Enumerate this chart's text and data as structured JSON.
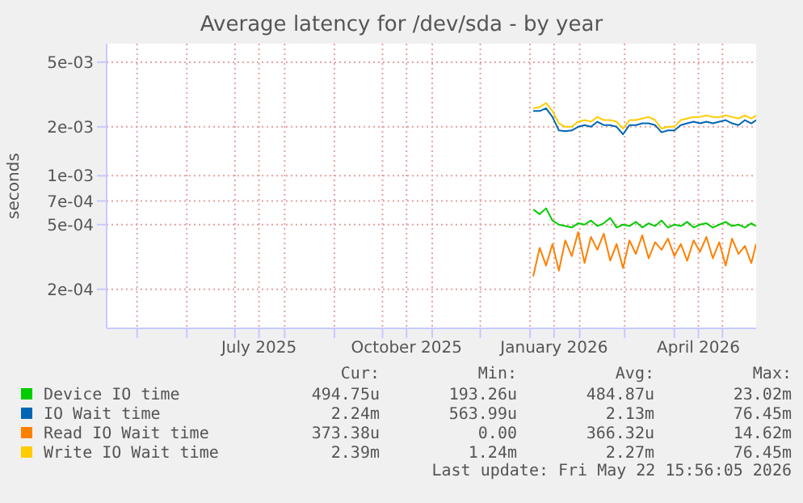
{
  "chart_data": {
    "type": "line",
    "title": "Average latency for /dev/sda - by year",
    "ylabel": "seconds",
    "log": "y",
    "grid": true,
    "legend": "bottom",
    "xlim": [
      "2025-04-12",
      "2026-05-22"
    ],
    "xticks": [
      {
        "value": "2025-05-01",
        "label": null
      },
      {
        "value": "2025-06-01",
        "label": null
      },
      {
        "value": "2025-07-01",
        "label": null
      },
      {
        "value": "2025-07-16",
        "label": "July 2025"
      },
      {
        "value": "2025-08-01",
        "label": null
      },
      {
        "value": "2025-09-01",
        "label": null
      },
      {
        "value": "2025-10-01",
        "label": null
      },
      {
        "value": "2025-10-16",
        "label": "October 2025"
      },
      {
        "value": "2025-11-01",
        "label": null
      },
      {
        "value": "2025-12-01",
        "label": null
      },
      {
        "value": "2026-01-01",
        "label": null
      },
      {
        "value": "2026-01-16",
        "label": "January 2026"
      },
      {
        "value": "2026-02-01",
        "label": null
      },
      {
        "value": "2026-03-01",
        "label": null
      },
      {
        "value": "2026-04-01",
        "label": null
      },
      {
        "value": "2026-04-16",
        "label": "April 2026"
      },
      {
        "value": "2026-05-01",
        "label": null
      }
    ],
    "ylim": [
      0.000115,
      0.0065
    ],
    "yticks": [
      {
        "value": 0.0002,
        "label": "2e-04"
      },
      {
        "value": 0.0005,
        "label": "5e-04"
      },
      {
        "value": 0.0007,
        "label": "7e-04"
      },
      {
        "value": 0.001,
        "label": "1e-03"
      },
      {
        "value": 0.002,
        "label": "2e-03"
      },
      {
        "value": 0.005,
        "label": "5e-03"
      }
    ],
    "x": [
      "2026-01-03",
      "2026-01-07",
      "2026-01-11",
      "2026-01-15",
      "2026-01-19",
      "2026-01-23",
      "2026-01-27",
      "2026-01-31",
      "2026-02-04",
      "2026-02-08",
      "2026-02-12",
      "2026-02-16",
      "2026-02-20",
      "2026-02-24",
      "2026-02-28",
      "2026-03-04",
      "2026-03-08",
      "2026-03-12",
      "2026-03-16",
      "2026-03-20",
      "2026-03-24",
      "2026-03-28",
      "2026-04-01",
      "2026-04-05",
      "2026-04-09",
      "2026-04-13",
      "2026-04-17",
      "2026-04-21",
      "2026-04-25",
      "2026-04-29",
      "2026-05-03",
      "2026-05-07",
      "2026-05-11",
      "2026-05-15",
      "2026-05-19",
      "2026-05-22"
    ],
    "series": [
      {
        "name": "Device IO time",
        "color": "#00cc00",
        "values": [
          0.00062,
          0.00058,
          0.00063,
          0.00053,
          0.0005,
          0.00049,
          0.00048,
          0.00051,
          0.0005,
          0.00053,
          0.00049,
          0.00051,
          0.00055,
          0.00048,
          0.0005,
          0.00049,
          0.00052,
          0.00048,
          0.00051,
          0.00049,
          0.00053,
          0.00048,
          0.0005,
          0.00049,
          0.00052,
          0.00048,
          0.0005,
          0.00051,
          0.00048,
          0.0005,
          0.00052,
          0.00049,
          0.0005,
          0.00048,
          0.00051,
          0.00049
        ]
      },
      {
        "name": "IO Wait time",
        "color": "#0066b3",
        "values": [
          0.0025,
          0.0025,
          0.0026,
          0.0023,
          0.0019,
          0.00188,
          0.0019,
          0.002,
          0.00205,
          0.002,
          0.00215,
          0.00205,
          0.00205,
          0.002,
          0.0018,
          0.00205,
          0.00205,
          0.0021,
          0.0021,
          0.00205,
          0.00185,
          0.0019,
          0.0019,
          0.00205,
          0.0021,
          0.00215,
          0.0021,
          0.00215,
          0.0021,
          0.00215,
          0.0022,
          0.0021,
          0.00205,
          0.0022,
          0.0021,
          0.0022
        ]
      },
      {
        "name": "Read IO Wait time",
        "color": "#ff8000",
        "values": [
          0.00024,
          0.00036,
          0.00028,
          0.00038,
          0.00026,
          0.0004,
          0.00032,
          0.00045,
          0.00029,
          0.00042,
          0.00035,
          0.00044,
          0.0003,
          0.00038,
          0.00027,
          0.0004,
          0.00033,
          0.00043,
          0.00031,
          0.00039,
          0.00035,
          0.00041,
          0.00032,
          0.00038,
          0.0003,
          0.0004,
          0.00034,
          0.00042,
          0.00031,
          0.00039,
          0.00028,
          0.00041,
          0.00033,
          0.00037,
          0.00029,
          0.00038
        ]
      },
      {
        "name": "Write IO Wait time",
        "color": "#ffcc00",
        "values": [
          0.0026,
          0.00265,
          0.0028,
          0.0025,
          0.0021,
          0.002,
          0.002,
          0.00215,
          0.0022,
          0.00215,
          0.0023,
          0.0022,
          0.0022,
          0.00215,
          0.00195,
          0.0022,
          0.0022,
          0.00225,
          0.0023,
          0.0022,
          0.00195,
          0.002,
          0.002,
          0.0022,
          0.00225,
          0.0023,
          0.0023,
          0.00235,
          0.0023,
          0.0023,
          0.00235,
          0.0023,
          0.00225,
          0.00235,
          0.00225,
          0.00235
        ]
      }
    ],
    "annotations": [
      "Cur:",
      "Min:",
      "Avg:",
      "Max:",
      "494.75u",
      "193.26u",
      "484.87u",
      "23.02m",
      "2.24m",
      "563.99u",
      "2.13m",
      "76.45m",
      "373.38u",
      "0.00",
      "366.32u",
      "14.62m",
      "2.39m",
      "1.24m",
      "2.27m",
      "76.45m",
      "Last update: Fri May 22 15:56:05 2026"
    ]
  }
}
